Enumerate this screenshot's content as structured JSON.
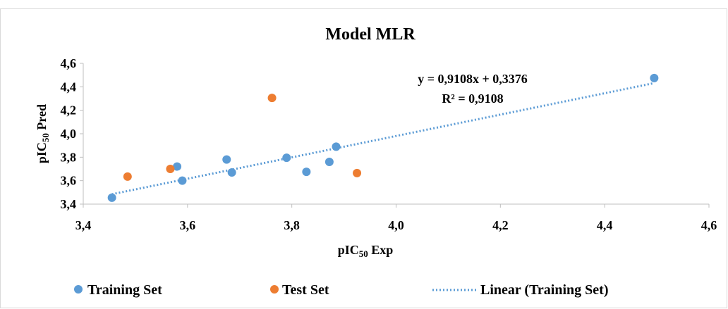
{
  "chart_data": {
    "type": "scatter",
    "title": "Model MLR",
    "xlabel": {
      "main": "pIC",
      "sub": "50",
      "rest": " Exp"
    },
    "ylabel": {
      "main": "pIC",
      "sub": "50",
      "rest": " Pred"
    },
    "xlim": [
      3.4,
      4.6
    ],
    "ylim": [
      3.4,
      4.6
    ],
    "x_ticks": [
      "3,4",
      "3,6",
      "3,8",
      "4,0",
      "4,2",
      "4,4",
      "4,6"
    ],
    "y_ticks": [
      "3,4",
      "3,6",
      "3,8",
      "4,0",
      "4,2",
      "4,4",
      "4,6"
    ],
    "x_tick_values": [
      3.4,
      3.6,
      3.8,
      4.0,
      4.2,
      4.4,
      4.6
    ],
    "y_tick_values": [
      3.4,
      3.6,
      3.8,
      4.0,
      4.2,
      4.4,
      4.6
    ],
    "grid": false,
    "legend_position": "bottom",
    "series": [
      {
        "name": "Training Set",
        "color": "#5b9bd5",
        "points": [
          [
            3.455,
            3.455
          ],
          [
            3.58,
            3.72
          ],
          [
            3.59,
            3.6
          ],
          [
            3.675,
            3.78
          ],
          [
            3.685,
            3.67
          ],
          [
            3.79,
            3.795
          ],
          [
            3.828,
            3.675
          ],
          [
            3.872,
            3.76
          ],
          [
            3.885,
            3.89
          ],
          [
            4.495,
            4.475
          ]
        ]
      },
      {
        "name": "Test Set",
        "color": "#ed7d31",
        "points": [
          [
            3.485,
            3.635
          ],
          [
            3.567,
            3.7
          ],
          [
            3.762,
            4.305
          ],
          [
            3.925,
            3.665
          ]
        ]
      }
    ],
    "trendline": {
      "name": "Linear (Training Set)",
      "color": "#5b9bd5",
      "slope": 0.9108,
      "intercept": 0.3376,
      "x_range": [
        3.455,
        4.495
      ],
      "equation": "y = 0,9108x + 0,3376",
      "r2": "R² = 0,9108"
    }
  }
}
